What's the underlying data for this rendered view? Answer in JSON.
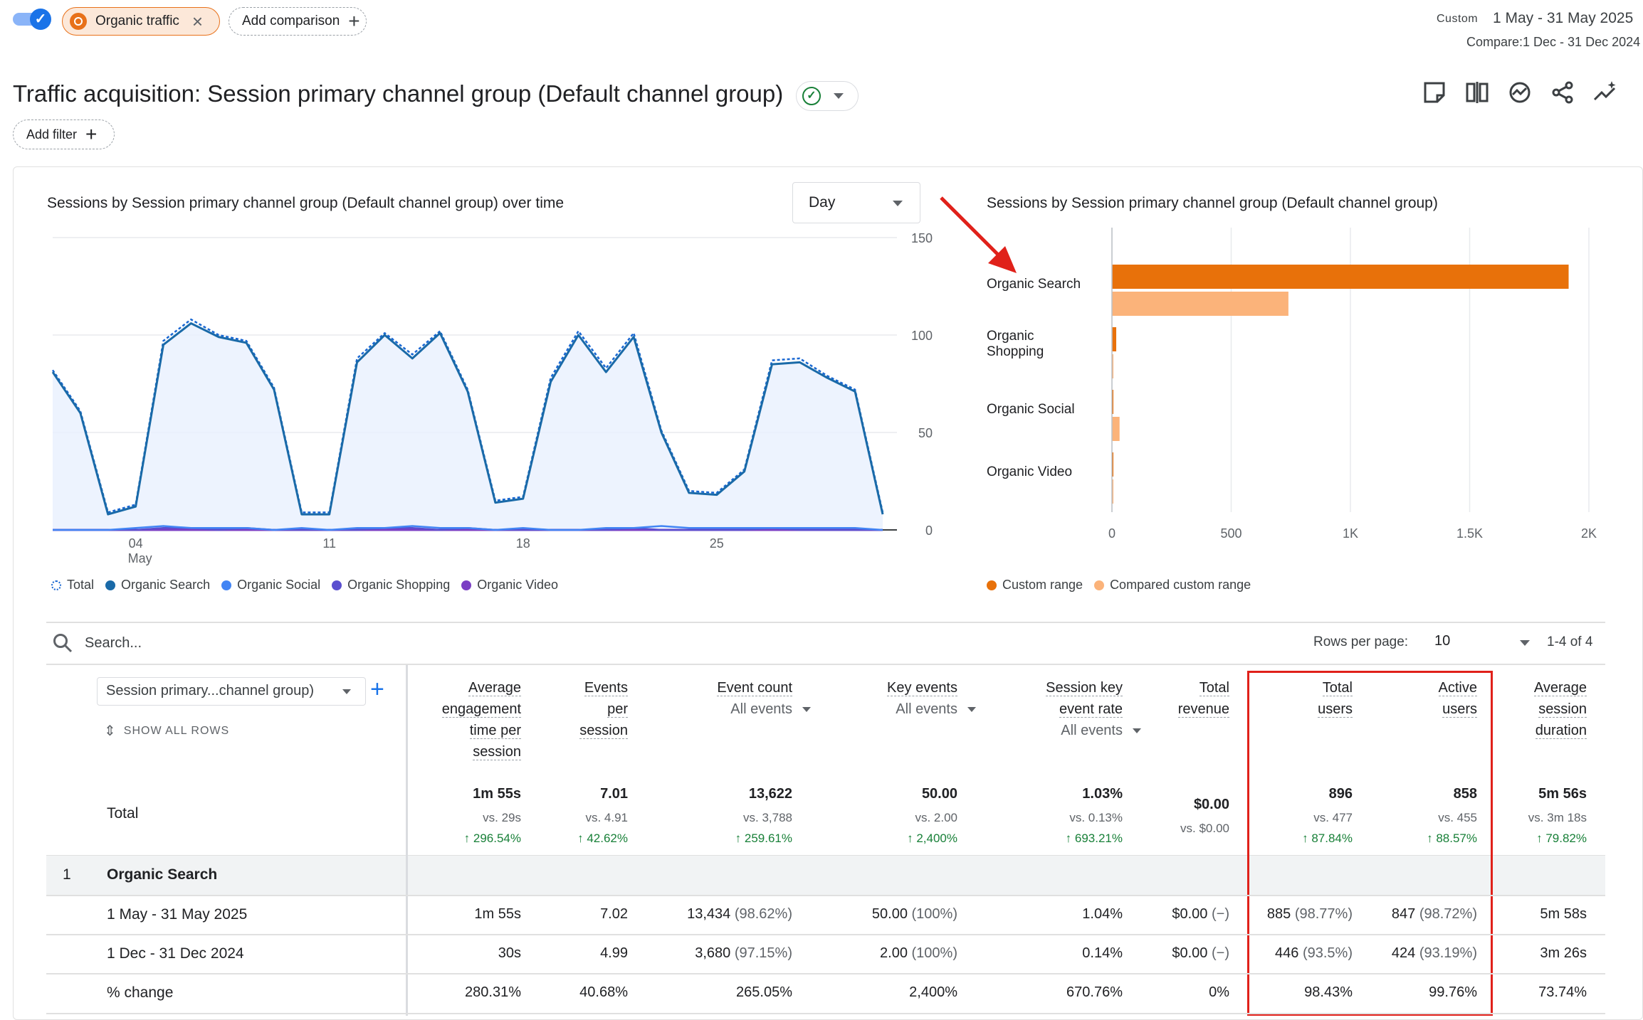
{
  "top_bar": {
    "segment_label": "Organic traffic",
    "add_comparison_label": "Add comparison",
    "date_badge": "Custom",
    "date_range": "1 May - 31 May 2025",
    "compare_range": "Compare:1 Dec - 31 Dec 2024"
  },
  "header": {
    "title": "Traffic acquisition: Session primary channel group (Default channel group)",
    "add_filter_label": "Add filter"
  },
  "colors": {
    "primary_blue": "#1a73e8",
    "line_blue": "#1967d2",
    "custom_range": "#e8710a",
    "compared_range": "#fbb37a",
    "positive_green": "#188038",
    "highlight_red": "#e0211a"
  },
  "line_chart": {
    "title": "Sessions by Session primary channel group (Default channel group) over time",
    "granularity": "Day",
    "legend": [
      "Total",
      "Organic Search",
      "Organic Social",
      "Organic Shopping",
      "Organic Video"
    ],
    "x_ticks": [
      {
        "day": 4,
        "label": "04",
        "sublabel": "May"
      },
      {
        "day": 11,
        "label": "11",
        "sublabel": ""
      },
      {
        "day": 18,
        "label": "18",
        "sublabel": ""
      },
      {
        "day": 25,
        "label": "25",
        "sublabel": ""
      }
    ],
    "y_ticks": [
      "0",
      "50",
      "100",
      "150"
    ]
  },
  "bar_chart": {
    "title": "Sessions by Session primary channel group (Default channel group)",
    "legend": [
      "Custom range",
      "Compared custom range"
    ],
    "x_ticks": [
      "0",
      "500",
      "1K",
      "1.5K",
      "2K"
    ]
  },
  "chart_data": [
    {
      "type": "line",
      "title": "Sessions by Session primary channel group (Default channel group) over time",
      "x": [
        1,
        2,
        3,
        4,
        5,
        6,
        7,
        8,
        9,
        10,
        11,
        12,
        13,
        14,
        15,
        16,
        17,
        18,
        19,
        20,
        21,
        22,
        23,
        24,
        25,
        26,
        27,
        28,
        29,
        30,
        31
      ],
      "ylim": [
        0,
        150
      ],
      "series": [
        {
          "name": "Total",
          "values": [
            82,
            61,
            9,
            13,
            97,
            108,
            100,
            97,
            73,
            9,
            9,
            88,
            101,
            90,
            102,
            72,
            15,
            17,
            78,
            102,
            83,
            101,
            51,
            20,
            19,
            31,
            87,
            88,
            79,
            72,
            9
          ]
        },
        {
          "name": "Organic Search",
          "values": [
            81,
            60,
            8,
            12,
            95,
            106,
            99,
            96,
            72,
            8,
            8,
            86,
            100,
            88,
            101,
            71,
            14,
            16,
            76,
            100,
            81,
            99,
            50,
            19,
            18,
            30,
            85,
            86,
            78,
            71,
            8
          ]
        },
        {
          "name": "Organic Social",
          "values": [
            0,
            0,
            0,
            1,
            2,
            1,
            1,
            1,
            0,
            1,
            0,
            1,
            1,
            2,
            1,
            1,
            0,
            1,
            0,
            0,
            1,
            1,
            2,
            1,
            1,
            1,
            1,
            1,
            1,
            1,
            0
          ]
        },
        {
          "name": "Organic Shopping",
          "values": [
            0,
            0,
            0,
            0,
            1,
            1,
            0,
            1,
            0,
            0,
            0,
            0,
            1,
            1,
            0,
            1,
            0,
            0,
            0,
            0,
            0,
            1,
            0,
            0,
            0,
            0,
            1,
            0,
            0,
            0,
            0
          ]
        },
        {
          "name": "Organic Video",
          "values": [
            0,
            0,
            0,
            0,
            0,
            0,
            0,
            0,
            0,
            0,
            0,
            0,
            0,
            0,
            0,
            0,
            0,
            0,
            0,
            0,
            0,
            0,
            0,
            0,
            0,
            0,
            0,
            0,
            0,
            0,
            0
          ]
        }
      ]
    },
    {
      "type": "bar",
      "title": "Sessions by Session primary channel group (Default channel group)",
      "categories": [
        "Organic Search",
        "Organic Shopping",
        "Organic Social",
        "Organic Video"
      ],
      "xlim": [
        0,
        2000
      ],
      "series": [
        {
          "name": "Custom range",
          "values": [
            1915,
            18,
            5,
            2
          ]
        },
        {
          "name": "Compared custom range",
          "values": [
            740,
            3,
            32,
            2
          ]
        }
      ]
    }
  ],
  "table": {
    "search_placeholder": "Search...",
    "rows_per_page_label": "Rows per page:",
    "rows_per_page": "10",
    "pagination": "1-4 of 4",
    "dimension_select": "Session primary...channel group)",
    "show_all_rows": "SHOW ALL ROWS",
    "columns": [
      {
        "lines": [
          "Average",
          "engagement",
          "time per",
          "session"
        ],
        "sub": ""
      },
      {
        "lines": [
          "Events",
          "per",
          "session"
        ],
        "sub": ""
      },
      {
        "lines": [
          "Event count"
        ],
        "sub": "All events"
      },
      {
        "lines": [
          "Key events"
        ],
        "sub": "All events"
      },
      {
        "lines": [
          "Session key",
          "event rate"
        ],
        "sub": "All events"
      },
      {
        "lines": [
          "Total",
          "revenue"
        ],
        "sub": ""
      },
      {
        "lines": [
          "Total",
          "users"
        ],
        "sub": ""
      },
      {
        "lines": [
          "Active",
          "users"
        ],
        "sub": ""
      },
      {
        "lines": [
          "Average",
          "session",
          "duration"
        ],
        "sub": ""
      }
    ],
    "totals": {
      "label": "Total",
      "values": [
        "1m 55s",
        "7.01",
        "13,622",
        "50.00",
        "1.03%",
        "$0.00",
        "896",
        "858",
        "5m 56s"
      ],
      "vs": [
        "vs. 29s",
        "vs. 4.91",
        "vs. 3,788",
        "vs. 2.00",
        "vs. 0.13%",
        "vs. $0.00",
        "vs. 477",
        "vs. 455",
        "vs. 3m 18s"
      ],
      "change": [
        "296.54%",
        "42.62%",
        "259.61%",
        "2,400%",
        "693.21%",
        "",
        "87.84%",
        "88.57%",
        "79.82%"
      ]
    },
    "group": {
      "index": "1",
      "label": "Organic Search"
    },
    "rows": [
      {
        "label": "1 May - 31 May 2025",
        "cells": [
          {
            "v": "1m 55s",
            "p": ""
          },
          {
            "v": "7.02",
            "p": ""
          },
          {
            "v": "13,434",
            "p": "(98.62%)"
          },
          {
            "v": "50.00",
            "p": "(100%)"
          },
          {
            "v": "1.04%",
            "p": ""
          },
          {
            "v": "$0.00",
            "p": "(−)"
          },
          {
            "v": "885",
            "p": "(98.77%)"
          },
          {
            "v": "847",
            "p": "(98.72%)"
          },
          {
            "v": "5m 58s",
            "p": ""
          }
        ]
      },
      {
        "label": "1 Dec - 31 Dec 2024",
        "cells": [
          {
            "v": "30s",
            "p": ""
          },
          {
            "v": "4.99",
            "p": ""
          },
          {
            "v": "3,680",
            "p": "(97.15%)"
          },
          {
            "v": "2.00",
            "p": "(100%)"
          },
          {
            "v": "0.14%",
            "p": ""
          },
          {
            "v": "$0.00",
            "p": "(−)"
          },
          {
            "v": "446",
            "p": "(93.5%)"
          },
          {
            "v": "424",
            "p": "(93.19%)"
          },
          {
            "v": "3m 26s",
            "p": ""
          }
        ]
      },
      {
        "label": "% change",
        "cells": [
          {
            "v": "280.31%",
            "p": ""
          },
          {
            "v": "40.68%",
            "p": ""
          },
          {
            "v": "265.05%",
            "p": ""
          },
          {
            "v": "2,400%",
            "p": ""
          },
          {
            "v": "670.76%",
            "p": ""
          },
          {
            "v": "0%",
            "p": ""
          },
          {
            "v": "98.43%",
            "p": ""
          },
          {
            "v": "99.76%",
            "p": ""
          },
          {
            "v": "73.74%",
            "p": ""
          }
        ]
      }
    ]
  }
}
